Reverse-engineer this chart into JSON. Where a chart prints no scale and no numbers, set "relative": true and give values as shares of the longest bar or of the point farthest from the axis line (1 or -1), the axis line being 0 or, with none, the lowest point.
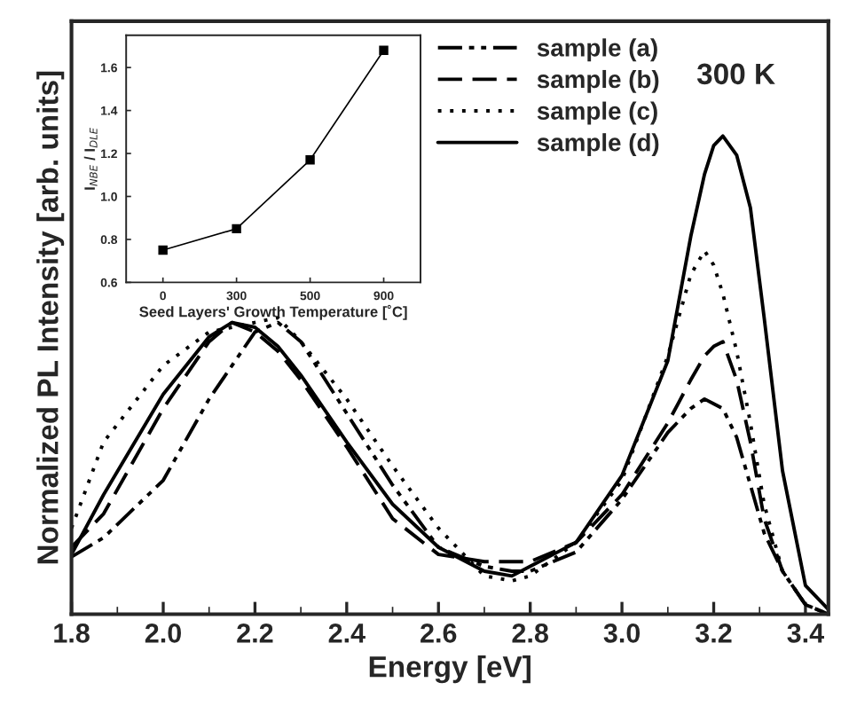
{
  "chart_data": [
    {
      "type": "line",
      "relative": true,
      "xlabel": "Energy [eV]",
      "ylabel": "Normalized PL Intensity [arb. units]",
      "xlim": [
        1.8,
        3.45
      ],
      "xticks": [
        {
          "value": 1.8,
          "label": "1.8"
        },
        {
          "value": 2.0,
          "label": "2.0"
        },
        {
          "value": 2.2,
          "label": "2.2"
        },
        {
          "value": 2.4,
          "label": "2.4"
        },
        {
          "value": 2.6,
          "label": "2.6"
        },
        {
          "value": 2.8,
          "label": "2.8"
        },
        {
          "value": 3.0,
          "label": "3.0"
        },
        {
          "value": 3.2,
          "label": "3.2"
        },
        {
          "value": 3.4,
          "label": "3.4"
        }
      ],
      "tick_labels": "x",
      "legend": "top right",
      "annotations": [
        "300 K"
      ],
      "x": [
        1.8,
        1.87,
        2.0,
        2.1,
        2.15,
        2.2,
        2.25,
        2.3,
        2.4,
        2.5,
        2.6,
        2.7,
        2.76,
        2.8,
        2.9,
        3.0,
        3.1,
        3.15,
        3.18,
        3.2,
        3.22,
        3.25,
        3.28,
        3.31,
        3.35,
        3.4,
        3.45
      ],
      "series": [
        {
          "name": "sample (a)",
          "color": "#000000",
          "line_style": "dashdotdot",
          "values": [
            0.12,
            0.16,
            0.28,
            0.45,
            0.52,
            0.59,
            0.61,
            0.57,
            0.42,
            0.27,
            0.14,
            0.1,
            0.09,
            0.09,
            0.13,
            0.24,
            0.38,
            0.43,
            0.45,
            0.44,
            0.43,
            0.37,
            0.27,
            0.17,
            0.09,
            0.02,
            0.0
          ]
        },
        {
          "name": "sample (b)",
          "color": "#000000",
          "line_style": "dashed",
          "values": [
            0.14,
            0.21,
            0.43,
            0.57,
            0.61,
            0.59,
            0.55,
            0.49,
            0.35,
            0.2,
            0.125,
            0.11,
            0.11,
            0.11,
            0.15,
            0.25,
            0.4,
            0.49,
            0.54,
            0.56,
            0.57,
            0.49,
            0.36,
            0.2,
            0.09,
            0.02,
            0.0
          ]
        },
        {
          "name": "sample (c)",
          "color": "#000000",
          "line_style": "dotted",
          "values": [
            0.18,
            0.36,
            0.52,
            0.59,
            0.6,
            0.61,
            0.62,
            0.57,
            0.45,
            0.31,
            0.18,
            0.08,
            0.07,
            0.08,
            0.15,
            0.28,
            0.54,
            0.71,
            0.76,
            0.73,
            0.67,
            0.55,
            0.4,
            0.23,
            0.09,
            0.02,
            0.0
          ]
        },
        {
          "name": "sample (d)",
          "color": "#000000",
          "line_style": "solid",
          "values": [
            0.125,
            0.25,
            0.46,
            0.58,
            0.61,
            0.6,
            0.56,
            0.5,
            0.36,
            0.23,
            0.14,
            0.09,
            0.08,
            0.1,
            0.15,
            0.29,
            0.53,
            0.79,
            0.92,
            0.98,
            1.0,
            0.96,
            0.85,
            0.62,
            0.3,
            0.06,
            0.01
          ]
        }
      ]
    },
    {
      "type": "line",
      "xlabel": "Seed Layers' Growth Temperature [˚C]",
      "ylabel": "I$_{NBE}$ / I$_{DLE}$",
      "categories": [
        "0",
        "300",
        "500",
        "900"
      ],
      "ylim": [
        0.6,
        1.75
      ],
      "yticks": [
        {
          "value": 0.6,
          "label": "0.6"
        },
        {
          "value": 0.8,
          "label": "0.8"
        },
        {
          "value": 1.0,
          "label": "1.0"
        },
        {
          "value": 1.2,
          "label": "1.2"
        },
        {
          "value": 1.4,
          "label": "1.4"
        },
        {
          "value": 1.6,
          "label": "1.6"
        }
      ],
      "marker": "square",
      "series": [
        {
          "color": "#000000",
          "values": [
            0.75,
            0.85,
            1.17,
            1.68
          ]
        }
      ]
    }
  ]
}
